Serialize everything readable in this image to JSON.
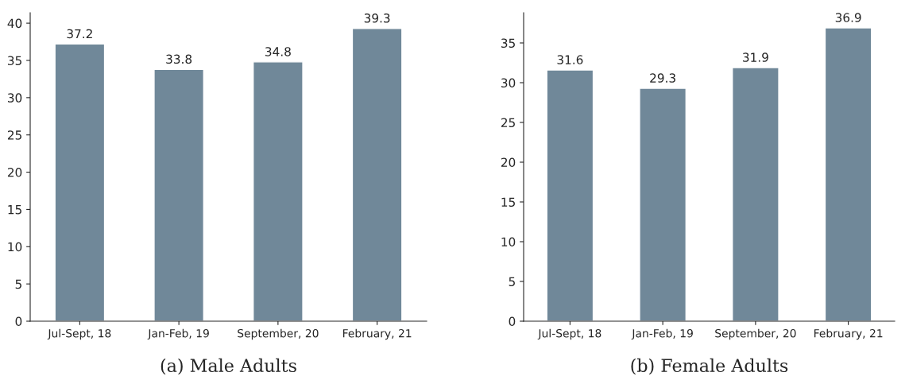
{
  "chart_data": [
    {
      "type": "bar",
      "title": "(a) Male Adults",
      "categories": [
        "Jul-Sept, 18",
        "Jan-Feb, 19",
        "September, 20",
        "February, 21"
      ],
      "values": [
        37.2,
        33.8,
        34.8,
        39.3
      ],
      "color": "#708899",
      "ylim": [
        0,
        41.4
      ],
      "yticks": [
        0,
        5,
        10,
        15,
        20,
        25,
        30,
        35,
        40
      ],
      "data_labels": true,
      "grid": false,
      "legend": false
    },
    {
      "type": "bar",
      "title": "(b) Female Adults",
      "categories": [
        "Jul-Sept, 18",
        "Jan-Feb, 19",
        "September, 20",
        "February, 21"
      ],
      "values": [
        31.6,
        29.3,
        31.9,
        36.9
      ],
      "color": "#708899",
      "ylim": [
        0,
        38.8
      ],
      "yticks": [
        0,
        5,
        10,
        15,
        20,
        25,
        30,
        35
      ],
      "data_labels": true,
      "grid": false,
      "legend": false
    }
  ]
}
